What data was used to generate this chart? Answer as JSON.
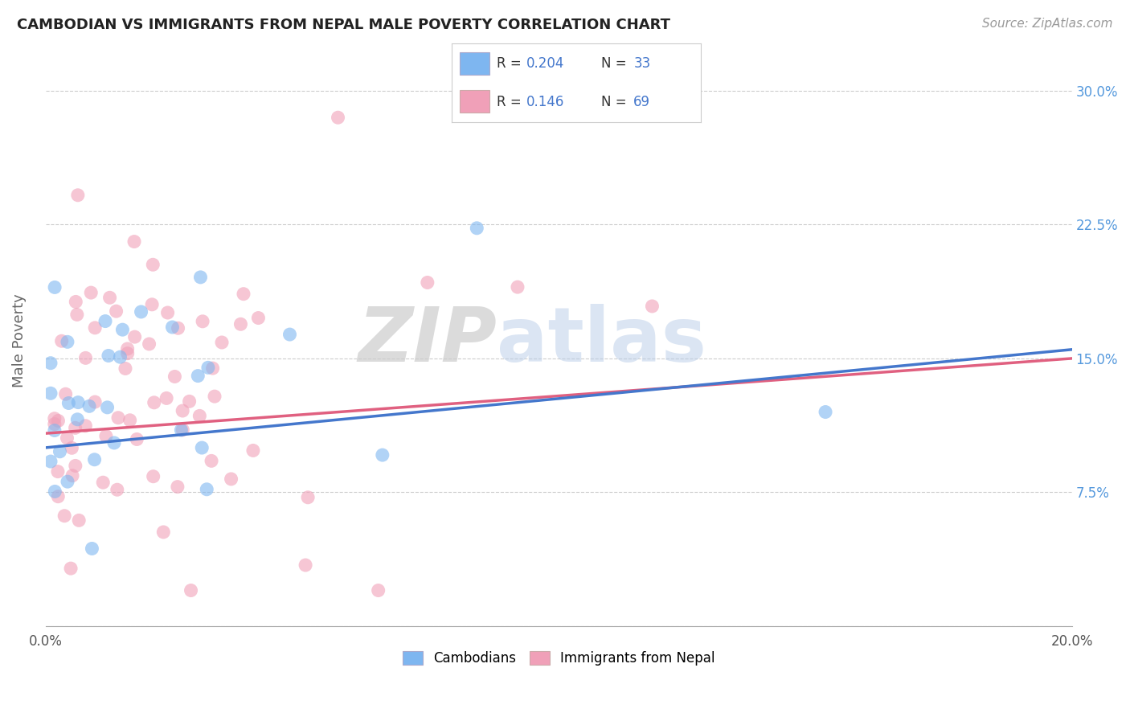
{
  "title": "CAMBODIAN VS IMMIGRANTS FROM NEPAL MALE POVERTY CORRELATION CHART",
  "source": "Source: ZipAtlas.com",
  "ylabel": "Male Poverty",
  "xlim": [
    0.0,
    0.2
  ],
  "ylim": [
    0.0,
    0.32
  ],
  "xticks": [
    0.0,
    0.05,
    0.1,
    0.15,
    0.2
  ],
  "xticklabels": [
    "0.0%",
    "",
    "",
    "",
    "20.0%"
  ],
  "yticks": [
    0.0,
    0.075,
    0.15,
    0.225,
    0.3
  ],
  "yticklabels": [
    "",
    "7.5%",
    "15.0%",
    "22.5%",
    "30.0%"
  ],
  "color_cambodian": "#7eb6f0",
  "color_nepal": "#f0a0b8",
  "color_line_cambodian": "#4477cc",
  "color_line_nepal": "#e06080",
  "color_axis_right": "#5599dd",
  "color_text_blue": "#4477cc",
  "background_color": "#ffffff",
  "line_cam_x0": 0.0,
  "line_cam_y0": 0.1,
  "line_cam_x1": 0.2,
  "line_cam_y1": 0.155,
  "line_nep_x0": 0.0,
  "line_nep_y0": 0.108,
  "line_nep_x1": 0.2,
  "line_nep_y1": 0.15
}
